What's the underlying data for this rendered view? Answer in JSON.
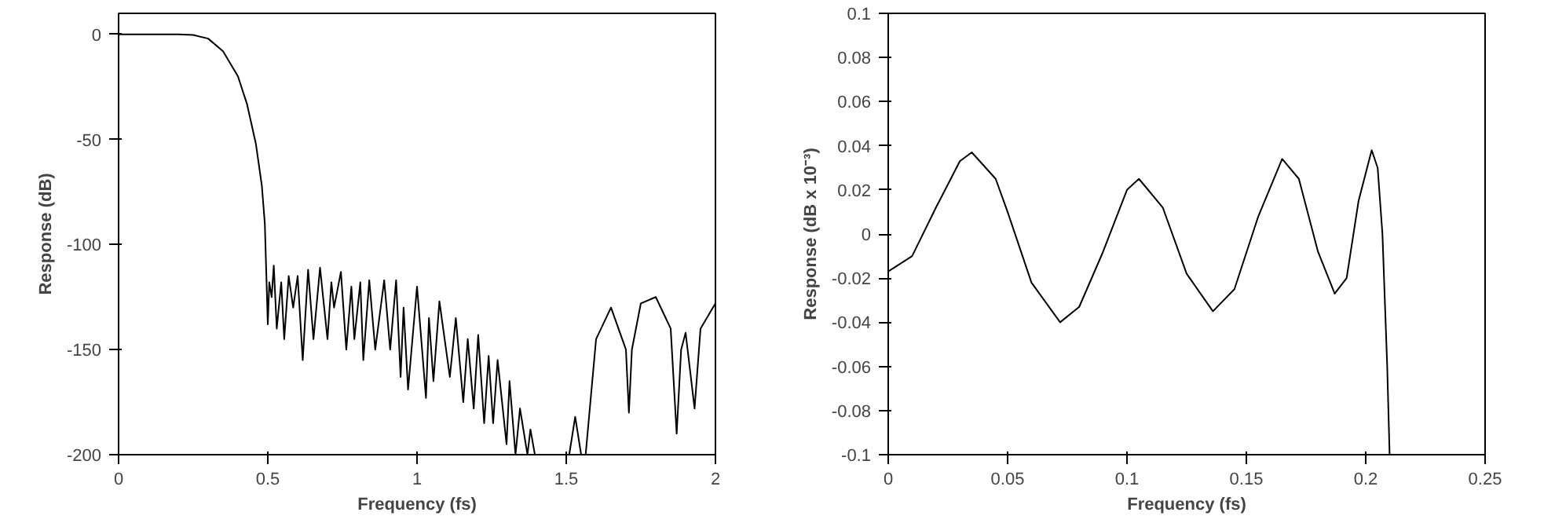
{
  "chart_data": [
    {
      "type": "line",
      "xlabel": "Frequency (fs)",
      "ylabel": "Response (dB)",
      "xlim": [
        0,
        2
      ],
      "ylim": [
        -200,
        10
      ],
      "xticks": [
        0,
        0.5,
        1,
        1.5,
        2
      ],
      "yticks": [
        0,
        -50,
        -100,
        -150,
        -200
      ],
      "x": [
        0,
        0.2,
        0.25,
        0.3,
        0.35,
        0.4,
        0.43,
        0.46,
        0.48,
        0.49,
        0.5,
        0.505,
        0.513,
        0.52,
        0.53,
        0.545,
        0.555,
        0.57,
        0.585,
        0.6,
        0.617,
        0.635,
        0.653,
        0.675,
        0.7,
        0.713,
        0.722,
        0.745,
        0.763,
        0.78,
        0.79,
        0.81,
        0.82,
        0.84,
        0.86,
        0.89,
        0.91,
        0.93,
        0.945,
        0.955,
        0.97,
        1.0,
        1.03,
        1.04,
        1.055,
        1.075,
        1.11,
        1.13,
        1.155,
        1.17,
        1.19,
        1.205,
        1.225,
        1.24,
        1.255,
        1.27,
        1.3,
        1.31,
        1.33,
        1.345,
        1.37,
        1.38,
        1.395,
        1.45,
        1.51,
        1.53,
        1.55,
        1.565,
        1.6,
        1.65,
        1.7,
        1.71,
        1.72,
        1.75,
        1.8,
        1.85,
        1.87,
        1.885,
        1.9,
        1.915,
        1.93,
        1.95,
        2.0
      ],
      "series": [
        {
          "color": "#000000",
          "values": [
            0,
            0,
            -0.3,
            -2,
            -8,
            -20,
            -33,
            -52,
            -72,
            -90,
            -138,
            -118,
            -125,
            -110,
            -140,
            -118,
            -145,
            -115,
            -130,
            -115,
            -155,
            -112,
            -145,
            -111,
            -145,
            -118,
            -130,
            -113,
            -150,
            -120,
            -145,
            -118,
            -155,
            -117,
            -150,
            -117,
            -150,
            -117,
            -163,
            -130,
            -169,
            -120,
            -173,
            -135,
            -165,
            -127,
            -163,
            -135,
            -175,
            -145,
            -178,
            -143,
            -185,
            -153,
            -185,
            -155,
            -195,
            -165,
            -200,
            -178,
            -200,
            -188,
            -200,
            null,
            -200,
            -182,
            -200,
            -200,
            -145,
            -130,
            -150,
            -180,
            -150,
            -128,
            -125,
            -140,
            -190,
            -150,
            -142,
            -160,
            -178,
            -140,
            -128
          ]
        }
      ]
    },
    {
      "type": "line",
      "xlabel": "Frequency (fs)",
      "ylabel": "Response (dB x 10⁻³)",
      "xlim": [
        0,
        0.25
      ],
      "ylim": [
        -0.1,
        0.1
      ],
      "xticks": [
        0,
        0.05,
        0.1,
        0.15,
        0.2,
        0.25
      ],
      "yticks": [
        0.1,
        0.08,
        0.06,
        0.04,
        0.02,
        0,
        -0.02,
        -0.04,
        -0.06,
        -0.08,
        -0.1
      ],
      "x": [
        0,
        0.01,
        0.02,
        0.03,
        0.035,
        0.045,
        0.05,
        0.06,
        0.072,
        0.08,
        0.09,
        0.1,
        0.105,
        0.115,
        0.125,
        0.136,
        0.145,
        0.155,
        0.165,
        0.172,
        0.18,
        0.187,
        0.192,
        0.197,
        0.2025,
        0.205,
        0.207,
        0.209,
        0.21
      ],
      "series": [
        {
          "color": "#000000",
          "values": [
            -0.017,
            -0.01,
            0.012,
            0.033,
            0.037,
            0.025,
            0.01,
            -0.022,
            -0.04,
            -0.033,
            -0.008,
            0.02,
            0.025,
            0.012,
            -0.018,
            -0.035,
            -0.025,
            0.008,
            0.034,
            0.025,
            -0.008,
            -0.027,
            -0.02,
            0.015,
            0.038,
            0.03,
            0.0,
            -0.06,
            -0.1
          ]
        }
      ]
    }
  ]
}
